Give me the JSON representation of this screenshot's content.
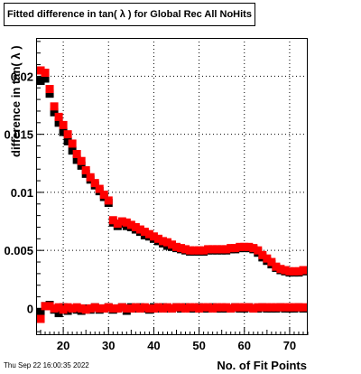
{
  "title_text": "Fitted difference in tan( λ ) for Global Rec All NoHits",
  "datestamp": "Thu Sep 22 16:00:35 2022",
  "colors": {
    "black_series": "#000000",
    "red_series": "#ff0000",
    "grid": "#000000"
  },
  "chart_data": {
    "type": "scatter",
    "title": "Fitted difference in tan( λ ) for Global Rec All NoHits",
    "xlabel": "No. of Fit Points",
    "ylabel": "difference in tan( λ )",
    "xlim": [
      14,
      74
    ],
    "ylim": [
      -0.0023,
      0.0233
    ],
    "x_ticks": [
      20,
      30,
      40,
      50,
      60,
      70
    ],
    "x_tick_labels": [
      "20",
      "30",
      "40",
      "50",
      "60",
      "70"
    ],
    "y_ticks": [
      0,
      0.005,
      0.01,
      0.015,
      0.02
    ],
    "y_tick_labels": [
      "0",
      "0.005",
      "0.01",
      "0.015",
      "0.02"
    ],
    "grid": true,
    "marker": "square",
    "series": [
      {
        "color": "black",
        "x": [
          15,
          16,
          17,
          18,
          19,
          20,
          21,
          22,
          23,
          24,
          25,
          26,
          27,
          28,
          29,
          30,
          31,
          32,
          33,
          34,
          35,
          36,
          37,
          38,
          39,
          40,
          41,
          42,
          43,
          44,
          45,
          46,
          47,
          48,
          49,
          50,
          51,
          52,
          53,
          54,
          55,
          56,
          57,
          58,
          59,
          60,
          61,
          62,
          63,
          64,
          65,
          66,
          67,
          68,
          69,
          70,
          71,
          72,
          73
        ],
        "y": [
          0.0196,
          0.0198,
          0.0185,
          0.0169,
          0.016,
          0.0152,
          0.0144,
          0.0136,
          0.0128,
          0.0123,
          0.0116,
          0.0111,
          0.0106,
          0.0101,
          0.0096,
          0.0091,
          0.0074,
          0.0071,
          0.0073,
          0.0071,
          0.007,
          0.0068,
          0.0066,
          0.0063,
          0.0062,
          0.006,
          0.0058,
          0.0056,
          0.0054,
          0.0053,
          0.0052,
          0.0051,
          0.005,
          0.0049,
          0.0049,
          0.0049,
          0.0049,
          0.005,
          0.005,
          0.005,
          0.005,
          0.005,
          0.0051,
          0.0051,
          0.0052,
          0.0052,
          0.0052,
          0.0051,
          0.0048,
          0.0044,
          0.0041,
          0.0038,
          0.0035,
          0.0033,
          0.0032,
          0.0031,
          0.0031,
          0.0031,
          0.0032
        ]
      },
      {
        "color": "red",
        "x": [
          15,
          16,
          17,
          18,
          19,
          20,
          21,
          22,
          23,
          24,
          25,
          26,
          27,
          28,
          29,
          30,
          31,
          32,
          33,
          34,
          35,
          36,
          37,
          38,
          39,
          40,
          41,
          42,
          43,
          44,
          45,
          46,
          47,
          48,
          49,
          50,
          51,
          52,
          53,
          54,
          55,
          56,
          57,
          58,
          59,
          60,
          61,
          62,
          63,
          64,
          65,
          66,
          67,
          68,
          69,
          70,
          71,
          72,
          73
        ],
        "y": [
          0.0205,
          0.0203,
          0.0189,
          0.0174,
          0.0165,
          0.0158,
          0.015,
          0.0142,
          0.0133,
          0.0127,
          0.0119,
          0.0113,
          0.0108,
          0.0103,
          0.0098,
          0.0093,
          0.0076,
          0.0073,
          0.0075,
          0.0074,
          0.0072,
          0.007,
          0.0068,
          0.0066,
          0.0064,
          0.0062,
          0.006,
          0.0058,
          0.0057,
          0.0055,
          0.0053,
          0.0052,
          0.0051,
          0.005,
          0.005,
          0.005,
          0.005,
          0.0051,
          0.0051,
          0.0051,
          0.0051,
          0.0051,
          0.0052,
          0.0052,
          0.0053,
          0.0053,
          0.0053,
          0.0052,
          0.005,
          0.0046,
          0.0043,
          0.004,
          0.0036,
          0.0034,
          0.0033,
          0.0032,
          0.0032,
          0.0032,
          0.0033
        ]
      },
      {
        "color": "black",
        "x": [
          15,
          16,
          17,
          18,
          19,
          20,
          21,
          22,
          23,
          24,
          25,
          26,
          27,
          28,
          29,
          30,
          31,
          32,
          33,
          34,
          35,
          36,
          37,
          38,
          39,
          40,
          41,
          42,
          43,
          44,
          45,
          46,
          47,
          48,
          49,
          50,
          51,
          52,
          53,
          54,
          55,
          56,
          57,
          58,
          59,
          60,
          61,
          62,
          63,
          64,
          65,
          66,
          67,
          68,
          69,
          70,
          71,
          72,
          73
        ],
        "y": [
          -0.0003,
          0.0002,
          0.0003,
          -0.0001,
          -0.0004,
          0.0001,
          -0.0002,
          0.0,
          -0.0001,
          -0.0002,
          0.0,
          -0.0001,
          0.0001,
          -0.0001,
          0.0,
          0.0001,
          -0.0001,
          0.0,
          0.0001,
          -0.0002,
          0.0001,
          0.0,
          0.0001,
          0.0,
          -0.0001,
          0.0001,
          0.0,
          0.0001,
          0.0,
          0.0,
          0.0001,
          0.0,
          0.0001,
          0.0,
          0.0,
          0.0001,
          0.0,
          0.0,
          0.0001,
          0.0,
          0.0,
          0.0,
          0.0,
          0.0001,
          0.0,
          0.0,
          0.0001,
          0.0,
          0.0,
          0.0001,
          0.0,
          0.0,
          0.0,
          0.0001,
          0.0,
          0.0,
          0.0,
          0.0001,
          0.0
        ]
      },
      {
        "color": "red",
        "x": [
          15,
          16,
          17,
          18,
          19,
          20,
          21,
          22,
          23,
          24,
          25,
          26,
          27,
          28,
          29,
          30,
          31,
          32,
          33,
          34,
          35,
          36,
          37,
          38,
          39,
          40,
          41,
          42,
          43,
          44,
          45,
          46,
          47,
          48,
          49,
          50,
          51,
          52,
          53,
          54,
          55,
          56,
          57,
          58,
          59,
          60,
          61,
          62,
          63,
          64,
          65,
          66,
          67,
          68,
          69,
          70,
          71,
          72,
          73
        ],
        "y": [
          -0.0009,
          0.0002,
          0.0002,
          0.0,
          0.0001,
          -0.0001,
          0.0001,
          0.0,
          0.0001,
          0.0,
          -0.0001,
          0.0,
          0.0001,
          0.0,
          0.0,
          0.0001,
          0.0,
          0.0,
          0.0001,
          0.0,
          0.0,
          0.0001,
          0.0,
          0.0001,
          0.0,
          0.0,
          0.0001,
          0.0,
          0.0001,
          0.0,
          0.0001,
          0.0001,
          0.0,
          0.0001,
          0.0001,
          0.0,
          0.0001,
          0.0001,
          0.0,
          0.0001,
          0.0001,
          0.0001,
          0.0,
          0.0001,
          0.0001,
          0.0001,
          0.0001,
          0.0,
          0.0001,
          0.0001,
          0.0001,
          0.0001,
          0.0001,
          0.0001,
          0.0001,
          0.0001,
          0.0001,
          0.0001,
          0.0001
        ]
      }
    ]
  }
}
